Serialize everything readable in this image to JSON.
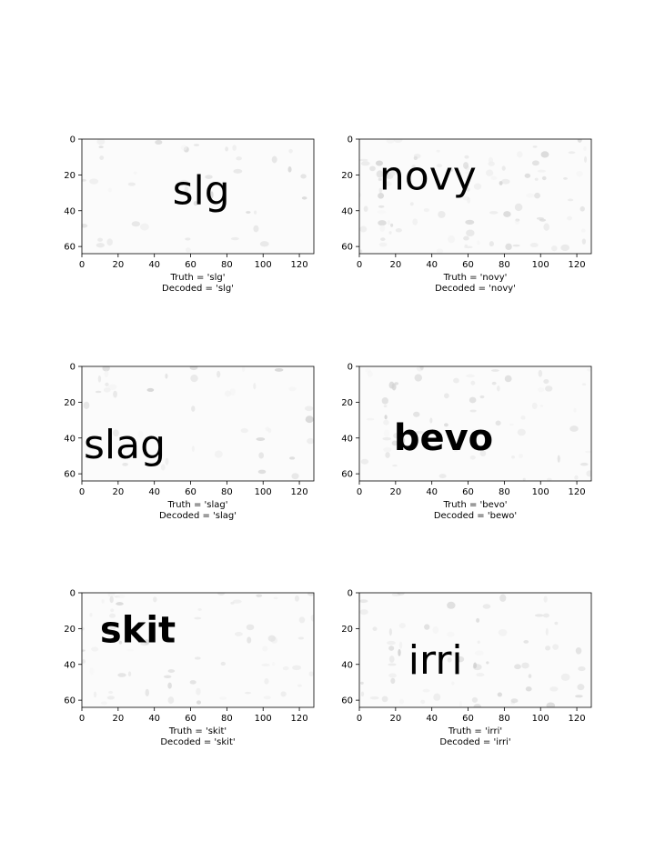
{
  "chart_data": [
    {
      "type": "image",
      "word": "slg",
      "caption_truth": "Truth = 'slg'",
      "caption_decoded": "Decoded = 'slg'",
      "text_pos": [
        50,
        18
      ],
      "font": "sans",
      "noise": 0.18,
      "x_ticks": [
        "0",
        "20",
        "40",
        "60",
        "80",
        "100",
        "120"
      ],
      "y_ticks": [
        "0",
        "20",
        "40",
        "60"
      ],
      "xlim": [
        0,
        128
      ],
      "ylim": [
        64,
        0
      ]
    },
    {
      "type": "image",
      "word": "novy",
      "caption_truth": "Truth = 'novy'",
      "caption_decoded": "Decoded = 'novy'",
      "text_pos": [
        11,
        10
      ],
      "font": "sans",
      "noise": 0.45,
      "x_ticks": [
        "0",
        "20",
        "40",
        "60",
        "80",
        "100",
        "120"
      ],
      "y_ticks": [
        "0",
        "20",
        "40",
        "60"
      ],
      "xlim": [
        0,
        128
      ],
      "ylim": [
        64,
        0
      ]
    },
    {
      "type": "image",
      "word": "slag",
      "caption_truth": "Truth = 'slag'",
      "caption_decoded": "Decoded = 'slag'",
      "text_pos": [
        1,
        33
      ],
      "font": "sans",
      "noise": 0.18,
      "x_ticks": [
        "0",
        "20",
        "40",
        "60",
        "80",
        "100",
        "120"
      ],
      "y_ticks": [
        "0",
        "20",
        "40",
        "60"
      ],
      "xlim": [
        0,
        128
      ],
      "ylim": [
        64,
        0
      ]
    },
    {
      "type": "image",
      "word": "bevo",
      "caption_truth": "Truth = 'bevo'",
      "caption_decoded": "Decoded = 'bewo'",
      "text_pos": [
        19,
        31
      ],
      "font": "mono",
      "noise": 0.3,
      "x_ticks": [
        "0",
        "20",
        "40",
        "60",
        "80",
        "100",
        "120"
      ],
      "y_ticks": [
        "0",
        "20",
        "40",
        "60"
      ],
      "xlim": [
        0,
        128
      ],
      "ylim": [
        64,
        0
      ]
    },
    {
      "type": "image",
      "word": "skit",
      "caption_truth": "Truth = 'skit'",
      "caption_decoded": "Decoded = 'skit'",
      "text_pos": [
        10,
        12
      ],
      "font": "mono",
      "noise": 0.3,
      "x_ticks": [
        "0",
        "20",
        "40",
        "60",
        "80",
        "100",
        "120"
      ],
      "y_ticks": [
        "0",
        "20",
        "40",
        "60"
      ],
      "xlim": [
        0,
        128
      ],
      "ylim": [
        64,
        0
      ]
    },
    {
      "type": "image",
      "word": "irri",
      "caption_truth": "Truth = 'irri'",
      "caption_decoded": "Decoded = 'irri'",
      "text_pos": [
        27,
        27
      ],
      "font": "sans",
      "noise": 0.3,
      "x_ticks": [
        "0",
        "20",
        "40",
        "60",
        "80",
        "100",
        "120"
      ],
      "y_ticks": [
        "0",
        "20",
        "40",
        "60"
      ],
      "xlim": [
        0,
        128
      ],
      "ylim": [
        64,
        0
      ]
    }
  ]
}
